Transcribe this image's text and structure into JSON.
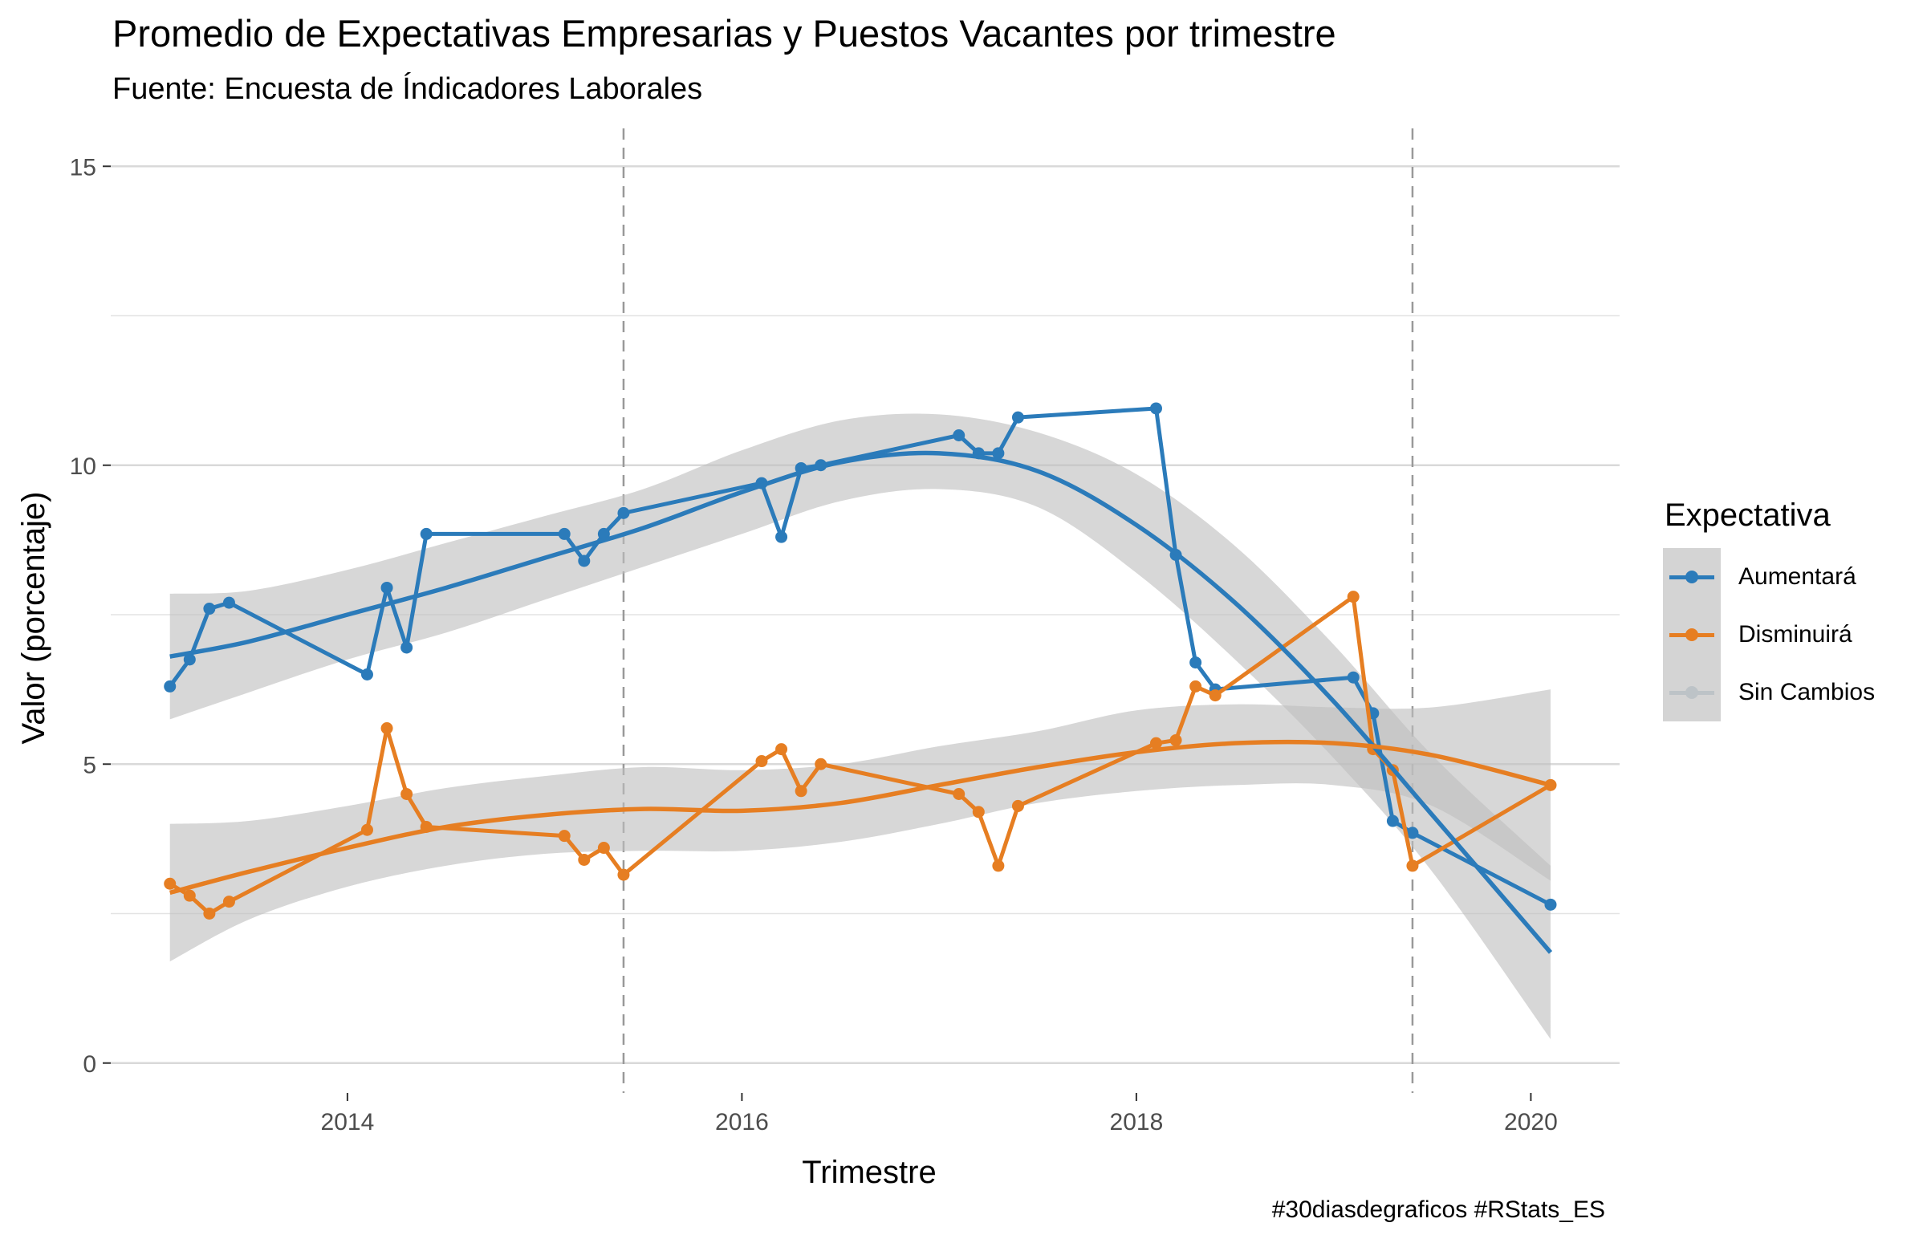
{
  "title": "Promedio de Expectativas Empresarias y Puestos Vacantes por trimestre",
  "subtitle": "Fuente: Encuesta de Índicadores Laborales",
  "caption": "#30diasdegraficos #RStats_ES",
  "legend": {
    "title": "Expectativa",
    "items": [
      {
        "label": "Aumentará",
        "color": "#2b7bba"
      },
      {
        "label": "Disminuirá",
        "color": "#e67e22"
      },
      {
        "label": "Sin Cambios",
        "color": "#bdc3c7"
      }
    ]
  },
  "chart_data": {
    "type": "line",
    "xlabel": "Trimestre",
    "ylabel": "Valor (porcentaje)",
    "x_ticks": [
      "2014",
      "2016",
      "2018",
      "2020"
    ],
    "y_ticks": [
      "0",
      "5",
      "10",
      "15"
    ],
    "xlim": [
      2012.8,
      2020.45
    ],
    "ylim": [
      -0.5,
      15.5
    ],
    "grid": true,
    "legend_position": "right",
    "vlines": [
      2015.4,
      2019.4
    ],
    "series": [
      {
        "name": "Aumentará",
        "color": "#2b7bba",
        "x": [
          2013.1,
          2013.2,
          2013.3,
          2013.4,
          2014.1,
          2014.2,
          2014.3,
          2014.4,
          2015.1,
          2015.2,
          2015.3,
          2015.4,
          2016.1,
          2016.2,
          2016.3,
          2016.4,
          2017.1,
          2017.2,
          2017.3,
          2017.4,
          2018.1,
          2018.2,
          2018.3,
          2018.4,
          2019.1,
          2019.2,
          2019.3,
          2019.4,
          2020.1
        ],
        "y": [
          6.3,
          6.75,
          7.6,
          7.7,
          6.5,
          7.95,
          6.95,
          8.85,
          8.85,
          8.4,
          8.85,
          9.2,
          9.7,
          8.8,
          9.95,
          10.0,
          10.5,
          10.2,
          10.2,
          10.8,
          10.95,
          8.5,
          6.7,
          6.25,
          6.45,
          5.85,
          4.05,
          3.85,
          2.65
        ],
        "smooth": [
          [
            2013.1,
            6.8
          ],
          [
            2013.5,
            7.05
          ],
          [
            2014,
            7.5
          ],
          [
            2014.5,
            7.95
          ],
          [
            2015,
            8.45
          ],
          [
            2015.5,
            8.95
          ],
          [
            2016,
            9.55
          ],
          [
            2016.5,
            10.05
          ],
          [
            2017,
            10.2
          ],
          [
            2017.5,
            9.9
          ],
          [
            2018,
            9.0
          ],
          [
            2018.5,
            7.7
          ],
          [
            2019,
            6.05
          ],
          [
            2019.5,
            4.15
          ],
          [
            2020.1,
            1.85
          ]
        ],
        "ribbon_upper": [
          7.85,
          7.9,
          8.25,
          8.7,
          9.15,
          9.6,
          10.25,
          10.75,
          10.85,
          10.55,
          9.85,
          8.65,
          7.0,
          5.15,
          3.3
        ],
        "ribbon_lower": [
          5.75,
          6.2,
          6.75,
          7.2,
          7.75,
          8.3,
          8.85,
          9.4,
          9.6,
          9.3,
          8.2,
          6.75,
          5.1,
          3.2,
          0.4
        ]
      },
      {
        "name": "Disminuirá",
        "color": "#e67e22",
        "x": [
          2013.1,
          2013.2,
          2013.3,
          2013.4,
          2014.1,
          2014.2,
          2014.3,
          2014.4,
          2015.1,
          2015.2,
          2015.3,
          2015.4,
          2016.1,
          2016.2,
          2016.3,
          2016.4,
          2017.1,
          2017.2,
          2017.3,
          2017.4,
          2018.1,
          2018.2,
          2018.3,
          2018.4,
          2019.1,
          2019.2,
          2019.3,
          2019.4,
          2020.1
        ],
        "y": [
          3.0,
          2.8,
          2.5,
          2.7,
          3.9,
          5.6,
          4.5,
          3.95,
          3.8,
          3.4,
          3.6,
          3.15,
          5.05,
          5.25,
          4.55,
          5.0,
          4.5,
          4.2,
          3.3,
          4.3,
          5.35,
          5.4,
          6.3,
          6.15,
          7.8,
          5.25,
          4.9,
          3.3,
          4.65
        ],
        "smooth": [
          [
            2013.1,
            2.85
          ],
          [
            2013.5,
            3.2
          ],
          [
            2014,
            3.6
          ],
          [
            2014.5,
            3.95
          ],
          [
            2015,
            4.15
          ],
          [
            2015.5,
            4.25
          ],
          [
            2016,
            4.22
          ],
          [
            2016.5,
            4.35
          ],
          [
            2017,
            4.65
          ],
          [
            2017.5,
            4.95
          ],
          [
            2018,
            5.2
          ],
          [
            2018.5,
            5.35
          ],
          [
            2019,
            5.35
          ],
          [
            2019.5,
            5.15
          ],
          [
            2020.1,
            4.65
          ]
        ],
        "ribbon_upper": [
          4.0,
          4.05,
          4.3,
          4.6,
          4.8,
          4.95,
          4.9,
          5.0,
          5.3,
          5.55,
          5.9,
          6.0,
          5.95,
          5.95,
          6.25
        ],
        "ribbon_lower": [
          1.7,
          2.4,
          2.95,
          3.3,
          3.5,
          3.55,
          3.55,
          3.7,
          4.0,
          4.35,
          4.55,
          4.65,
          4.65,
          4.3,
          3.05
        ]
      }
    ]
  }
}
